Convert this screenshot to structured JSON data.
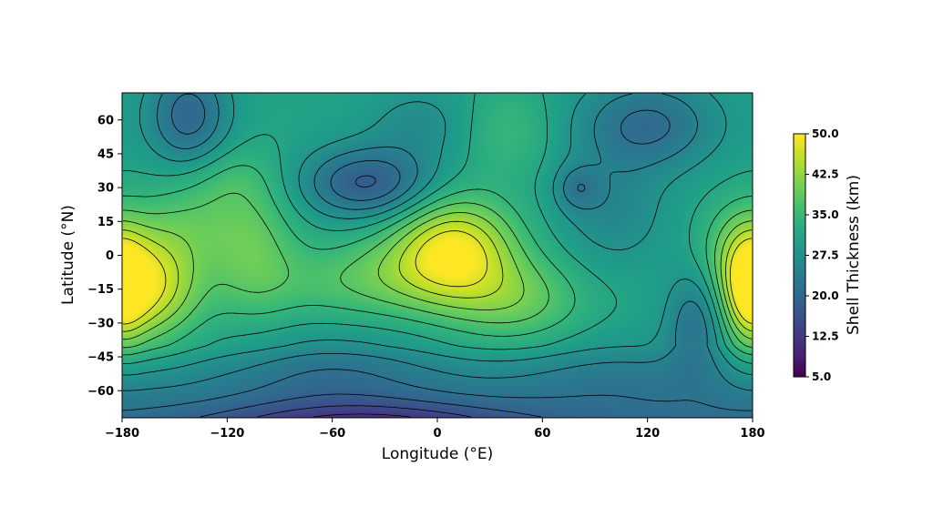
{
  "chart_data": {
    "type": "heatmap",
    "title": "",
    "xlabel": "Longitude (°E)",
    "ylabel": "Latitude (°N)",
    "xlim": [
      -180,
      180
    ],
    "ylim": [
      -72,
      72
    ],
    "x_ticks": [
      -180,
      -120,
      -60,
      0,
      60,
      120,
      180
    ],
    "y_ticks": [
      -60,
      -45,
      -30,
      -15,
      0,
      15,
      30,
      45,
      60
    ],
    "x_tick_labels": [
      "−180",
      "−120",
      "−60",
      "0",
      "60",
      "120",
      "180"
    ],
    "y_tick_labels": [
      "−60",
      "−45",
      "−30",
      "−15",
      "0",
      "15",
      "30",
      "45",
      "60"
    ],
    "colormap": "viridis",
    "contours": true,
    "colorbar": {
      "label": "Shell Thickness (km)",
      "range": [
        5.0,
        50.0
      ],
      "ticks": [
        5.0,
        12.5,
        20.0,
        27.5,
        35.0,
        42.5,
        50.0
      ],
      "tick_labels": [
        "5.0",
        "12.5",
        "20.0",
        "27.5",
        "35.0",
        "42.5",
        "50.0"
      ],
      "placement": "right"
    },
    "field_features": [
      {
        "kind": "max",
        "lon": -168,
        "lat": -13,
        "value": 49
      },
      {
        "kind": "max",
        "lon": 10,
        "lat": 3,
        "value": 49
      },
      {
        "kind": "max",
        "lon": -105,
        "lat": 5,
        "value": 38
      },
      {
        "kind": "max",
        "lon": 50,
        "lat": -18,
        "value": 38
      },
      {
        "kind": "max",
        "lon": 178,
        "lat": -15,
        "value": 42
      },
      {
        "kind": "min",
        "lon": -40,
        "lat": 32,
        "value": 19
      },
      {
        "kind": "min",
        "lon": -142,
        "lat": 60,
        "value": 20
      },
      {
        "kind": "min",
        "lon": 120,
        "lat": 58,
        "value": 21
      },
      {
        "kind": "min",
        "lon": 80,
        "lat": 30,
        "value": 23
      },
      {
        "kind": "min",
        "lon": 148,
        "lat": -28,
        "value": 22
      },
      {
        "kind": "min",
        "lon": -60,
        "lat": -50,
        "value": 24
      },
      {
        "kind": "min",
        "lon": -40,
        "lat": -72,
        "value": 8
      }
    ]
  }
}
